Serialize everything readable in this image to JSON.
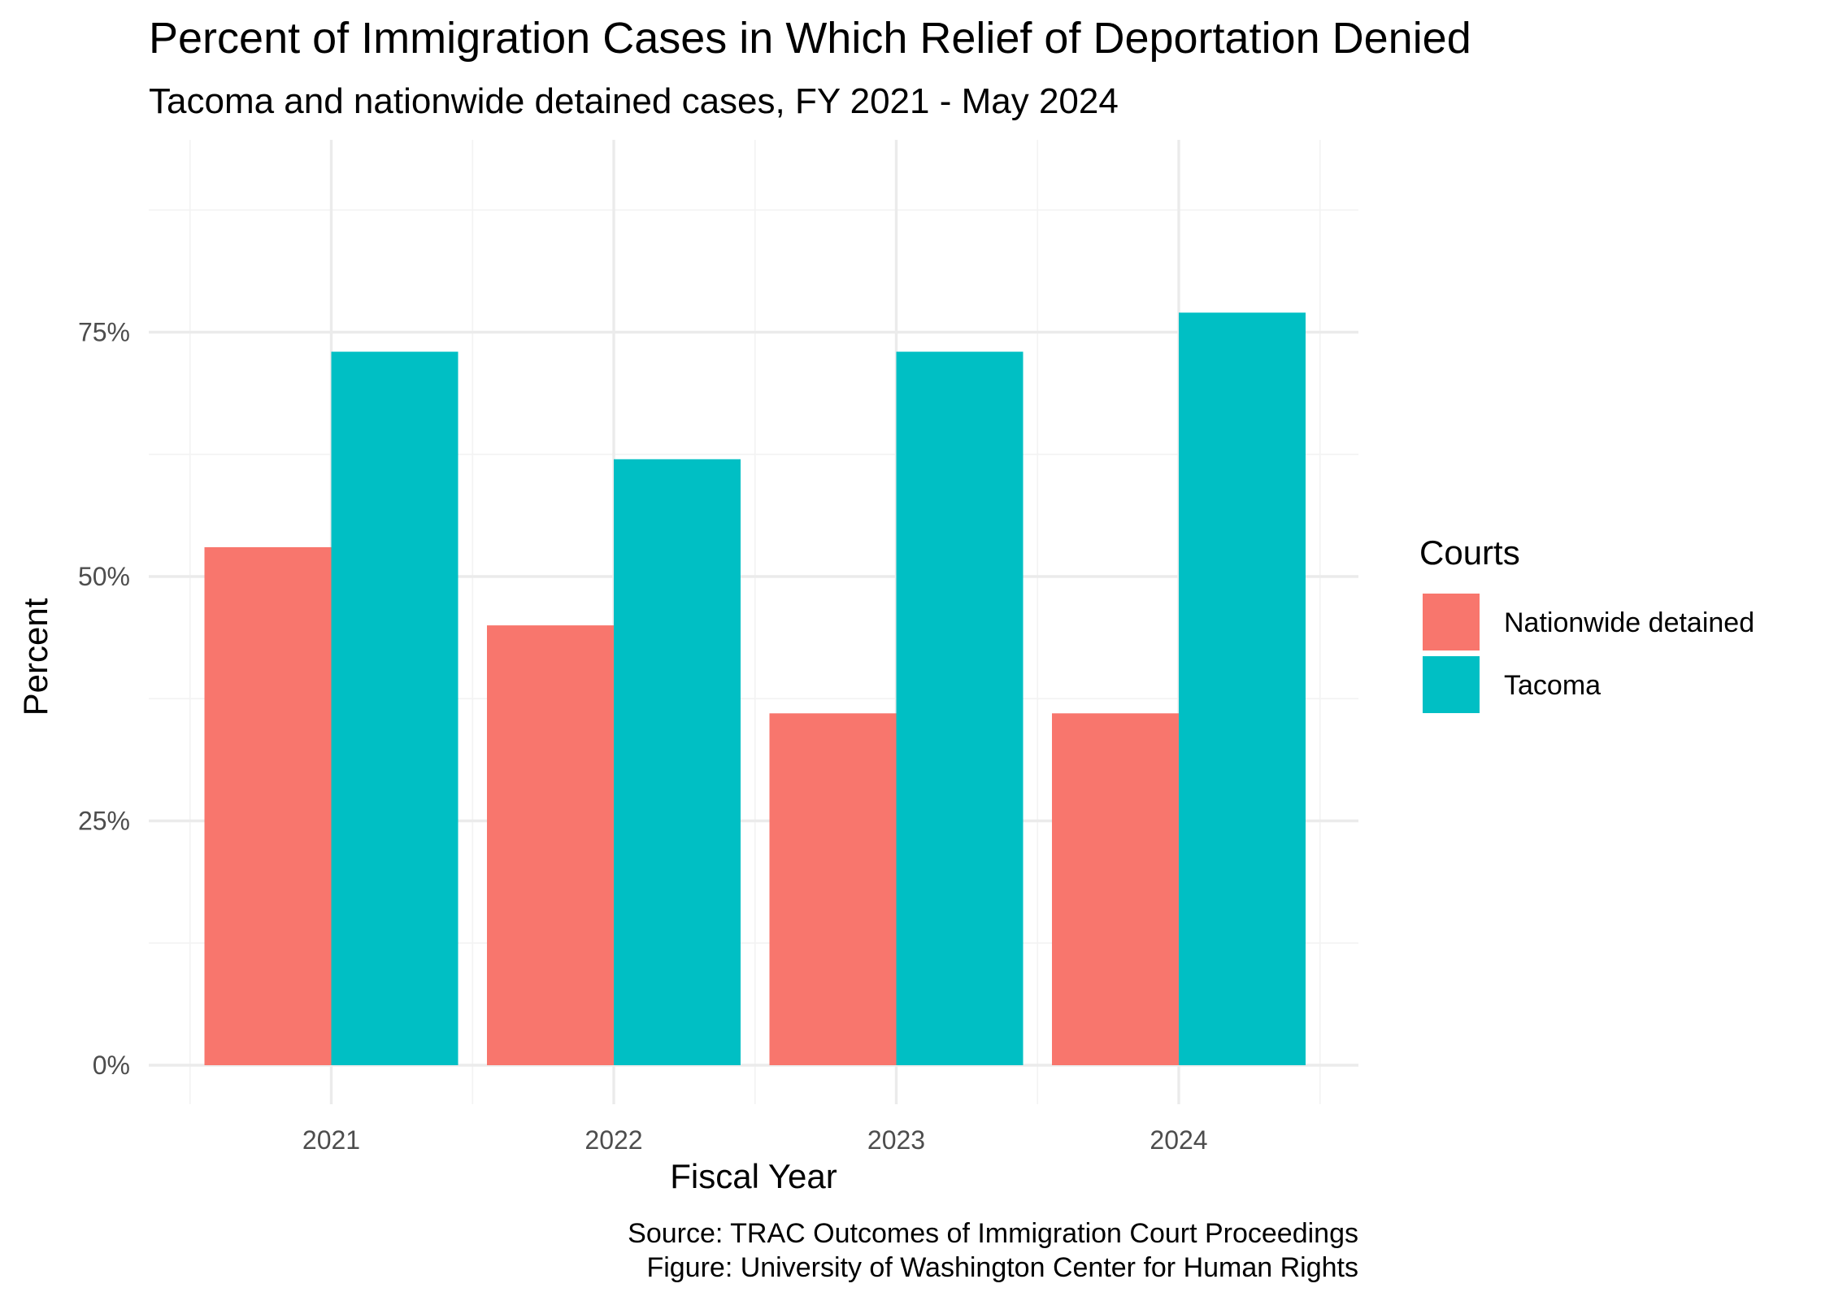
{
  "chart_data": {
    "type": "bar",
    "title": "Percent of Immigration Cases in Which Relief of Deportation Denied",
    "subtitle": "Tacoma and nationwide detained cases, FY 2021 - May 2024",
    "xlabel": "Fiscal Year",
    "ylabel": "Percent",
    "categories": [
      "2021",
      "2022",
      "2023",
      "2024"
    ],
    "series": [
      {
        "name": "Nationwide detained",
        "color": "#F8766D",
        "values": [
          53,
          45,
          36,
          36
        ]
      },
      {
        "name": "Tacoma",
        "color": "#00BFC4",
        "values": [
          73,
          62,
          73,
          77
        ]
      }
    ],
    "ylim": [
      0,
      94
    ],
    "y_ticks": [
      0,
      25,
      50,
      75
    ],
    "y_tick_labels": [
      "0%",
      "25%",
      "50%",
      "75%"
    ],
    "grid": true,
    "legend": {
      "title": "Courts",
      "position": "right"
    },
    "caption": [
      "Source: TRAC Outcomes of Immigration Court Proceedings",
      "Figure: University of Washington Center for Human Rights"
    ]
  }
}
